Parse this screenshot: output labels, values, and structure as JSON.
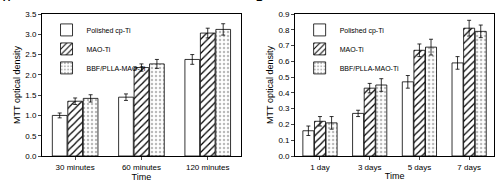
{
  "chart_data": [
    {
      "type": "bar",
      "title": "A",
      "x_label": "Time",
      "y_label": "MTT optical density",
      "categories": [
        "30 minutes",
        "60 minutes",
        "120 minutes"
      ],
      "series": [
        {
          "name": "Polished cp-Ti",
          "color": "#ffffff",
          "values": [
            1.0,
            1.45,
            2.38
          ],
          "errors": [
            0.06,
            0.08,
            0.12
          ]
        },
        {
          "name": "MAO-Ti",
          "color": "#ffffff",
          "values": [
            1.35,
            2.18,
            3.03
          ],
          "errors": [
            0.08,
            0.09,
            0.12
          ]
        },
        {
          "name": "BBF/PLLA-MAO-Ti",
          "color": "#3a3a3a",
          "values": [
            1.42,
            2.27,
            3.12
          ],
          "errors": [
            0.09,
            0.11,
            0.14
          ]
        }
      ],
      "ylim": [
        0,
        3.5
      ],
      "yticks": [
        {
          "value": 0,
          "label": "0.0"
        },
        0.5,
        {
          "value": 1,
          "label": "1.0"
        },
        1.5,
        {
          "value": 2,
          "label": "2.0"
        },
        2.5,
        {
          "value": 3,
          "label": "3.0"
        },
        3.5
      ],
      "legend": "upper left",
      "grid": false
    },
    {
      "type": "bar",
      "title": "B",
      "x_label": "Time",
      "y_label": "MTT optical density",
      "categories": [
        "1 day",
        "3 days",
        "5 days",
        "7 days"
      ],
      "series": [
        {
          "name": "Polished cp-Ti",
          "color": "#ffffff",
          "values": [
            0.16,
            0.27,
            0.47,
            0.59
          ],
          "errors": [
            0.03,
            0.02,
            0.04,
            0.04
          ]
        },
        {
          "name": "MAO-Ti",
          "color": "#ffffff",
          "values": [
            0.22,
            0.43,
            0.67,
            0.81
          ],
          "errors": [
            0.03,
            0.03,
            0.04,
            0.05
          ]
        },
        {
          "name": "BBF/PLLA-MAO-Ti",
          "color": "#3a3a3a",
          "values": [
            0.21,
            0.45,
            0.69,
            0.79
          ],
          "errors": [
            0.04,
            0.04,
            0.05,
            0.04
          ]
        }
      ],
      "ylim": [
        0,
        0.9
      ],
      "yticks": [
        {
          "value": 0,
          "label": "0.0"
        },
        0.1,
        0.2,
        0.3,
        0.4,
        0.5,
        0.6,
        0.7,
        0.8,
        0.9
      ],
      "legend": "upper left",
      "grid": false
    }
  ]
}
